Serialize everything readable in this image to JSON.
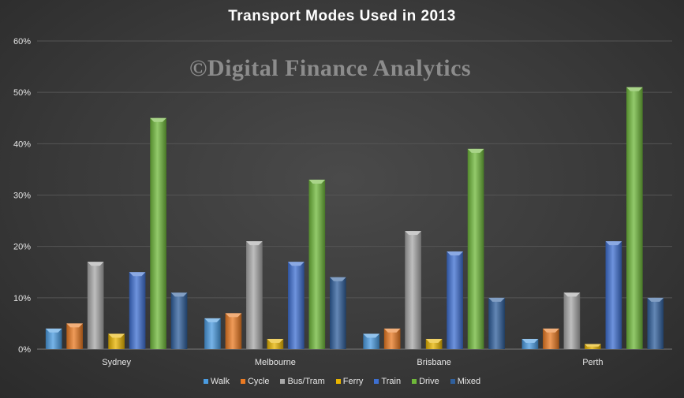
{
  "chart_data": {
    "type": "bar",
    "title": "Transport  Modes  Used  in  2013",
    "watermark": "©Digital Finance Analytics",
    "categories": [
      "Sydney",
      "Melbourne",
      "Brisbane",
      "Perth"
    ],
    "ylim": [
      0,
      60
    ],
    "yticks": [
      "0%",
      "10%",
      "20%",
      "30%",
      "40%",
      "50%",
      "60%"
    ],
    "grid": true,
    "legend_position": "bottom",
    "series": [
      {
        "name": "Walk",
        "color": "#4a9be0",
        "values": [
          4,
          6,
          3,
          2
        ]
      },
      {
        "name": "Cycle",
        "color": "#ea7a22",
        "values": [
          5,
          7,
          4,
          4
        ]
      },
      {
        "name": "Bus/Tram",
        "color": "#a8a8a8",
        "values": [
          17,
          21,
          23,
          11
        ]
      },
      {
        "name": "Ferry",
        "color": "#e8b400",
        "values": [
          3,
          2,
          2,
          1
        ]
      },
      {
        "name": "Train",
        "color": "#3d6fd1",
        "values": [
          15,
          17,
          19,
          21
        ]
      },
      {
        "name": "Drive",
        "color": "#6fb83a",
        "values": [
          45,
          33,
          39,
          51
        ]
      },
      {
        "name": "Mixed",
        "color": "#2f5f9c",
        "values": [
          11,
          14,
          10,
          10
        ]
      }
    ]
  }
}
